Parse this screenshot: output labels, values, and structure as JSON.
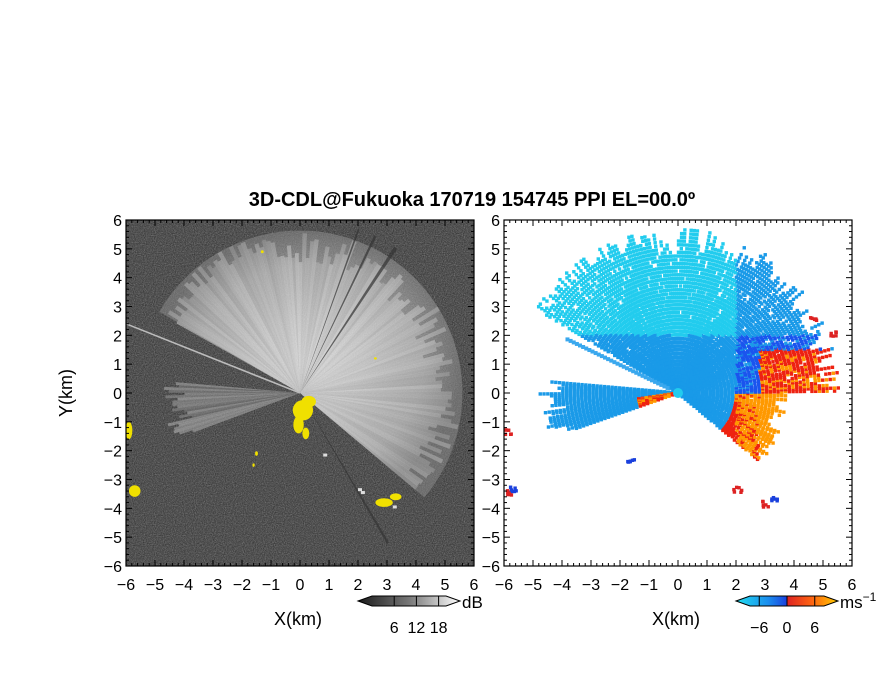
{
  "chart_data": {
    "title": "3D-CDL@Fukuoka 170719 154745 PPI EL=00.0º",
    "panels": [
      {
        "type": "heatmap",
        "variable": "intensity",
        "colormap": "grayscale",
        "xlabel": "X(km)",
        "ylabel": "Y(km)",
        "xlim": [
          -6,
          6
        ],
        "ylim": [
          -6,
          6
        ],
        "xticks": [
          "−6",
          "−5",
          "−4",
          "−3",
          "−2",
          "−1",
          "0",
          "1",
          "2",
          "3",
          "4",
          "5",
          "6"
        ],
        "yticks": [
          "6",
          "5",
          "4",
          "3",
          "2",
          "1",
          "0",
          "−1",
          "−2",
          "−3",
          "−4",
          "−5",
          "−6"
        ],
        "colorbar": {
          "ticks": [
            "6",
            "12",
            "18"
          ],
          "tick_values": [
            6,
            12,
            18
          ],
          "range": [
            0,
            20
          ],
          "unit": "dB"
        },
        "sector": {
          "from_deg": -45,
          "to_deg": 150,
          "range_km": 5.6
        },
        "notes_color": "#f0e000"
      },
      {
        "type": "heatmap",
        "variable": "radial_velocity",
        "colormap": "cyan-blue-red-orange",
        "xlabel": "X(km)",
        "ylabel": "",
        "xlim": [
          -6,
          6
        ],
        "ylim": [
          -6,
          6
        ],
        "xticks": [
          "−6",
          "−5",
          "−4",
          "−3",
          "−2",
          "−1",
          "0",
          "1",
          "2",
          "3",
          "4",
          "5",
          "6"
        ],
        "yticks": [
          "6",
          "5",
          "4",
          "3",
          "2",
          "1",
          "0",
          "−1",
          "−2",
          "−3",
          "−4",
          "−5",
          "−6"
        ],
        "colorbar": {
          "ticks": [
            "−6",
            "0",
            "6"
          ],
          "tick_values": [
            -6,
            0,
            6
          ],
          "range": [
            -8,
            8
          ],
          "unit": "ms",
          "unit_sup": "−1"
        },
        "sector": {
          "from_deg": -45,
          "to_deg": 150,
          "range_km": 5.6
        }
      }
    ]
  },
  "colors": {
    "cb_gray_dark": "#222222",
    "cb_gray_light": "#ffffff",
    "echo_yellow": "#f0e000",
    "vel_cyan": "#22ccee",
    "vel_blue": "#1a55ee",
    "vel_red": "#ee2211",
    "vel_orange": "#ff9900"
  }
}
